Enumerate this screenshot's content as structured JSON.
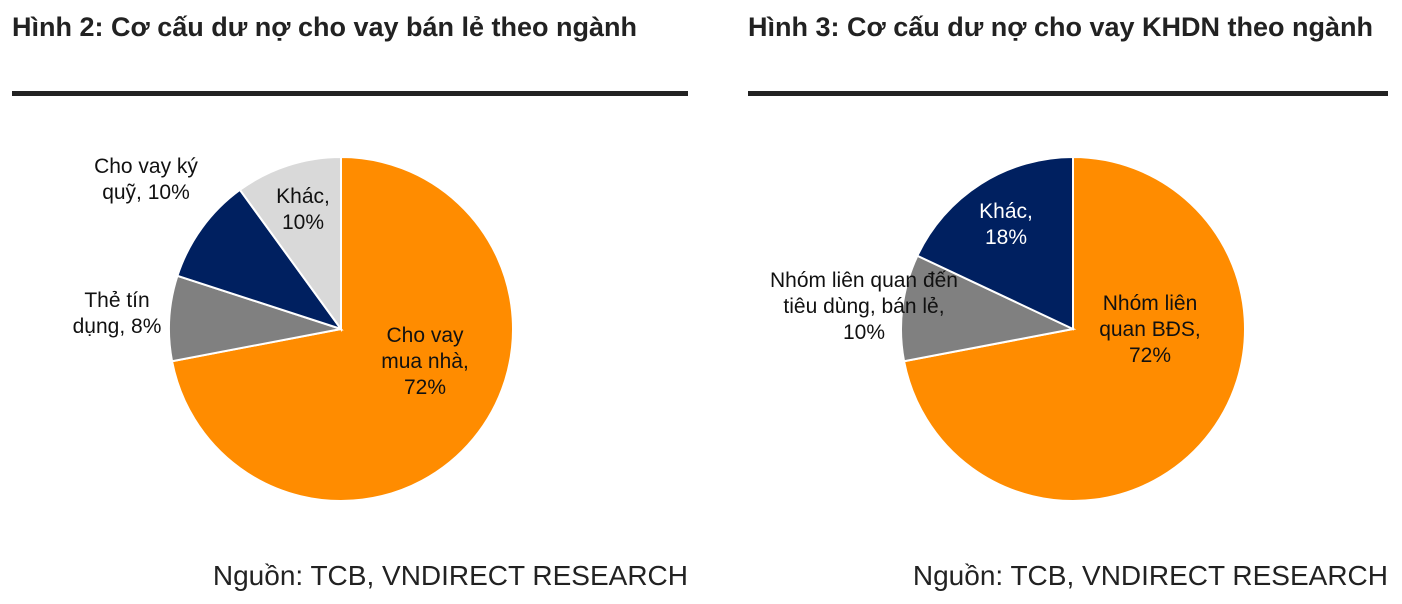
{
  "chart_data": [
    {
      "type": "pie",
      "title": "Hình 2: Cơ cấu dư nợ cho vay bán lẻ theo ngành",
      "categories": [
        "Cho vay mua nhà,",
        "Thẻ tín dụng,",
        "Cho vay ký quỹ,",
        "Khác,"
      ],
      "values": [
        72,
        8,
        10,
        10
      ],
      "value_labels": [
        "72%",
        "8%",
        "10%",
        "10%"
      ],
      "colors": [
        "#ff8c00",
        "#808080",
        "#002060",
        "#d9d9d9"
      ],
      "source": "Nguồn: TCB, VNDIRECT RESEARCH"
    },
    {
      "type": "pie",
      "title": "Hình 3: Cơ cấu dư nợ cho vay KHDN theo ngành",
      "categories": [
        "Nhóm liên quan BĐS,",
        "Nhóm liên quan đến tiêu dùng, bán lẻ,",
        "Khác,"
      ],
      "values": [
        72,
        10,
        18
      ],
      "value_labels": [
        "72%",
        "10%",
        "18%"
      ],
      "colors": [
        "#ff8c00",
        "#808080",
        "#002060"
      ],
      "source": "Nguồn: TCB, VNDIRECT RESEARCH"
    }
  ]
}
